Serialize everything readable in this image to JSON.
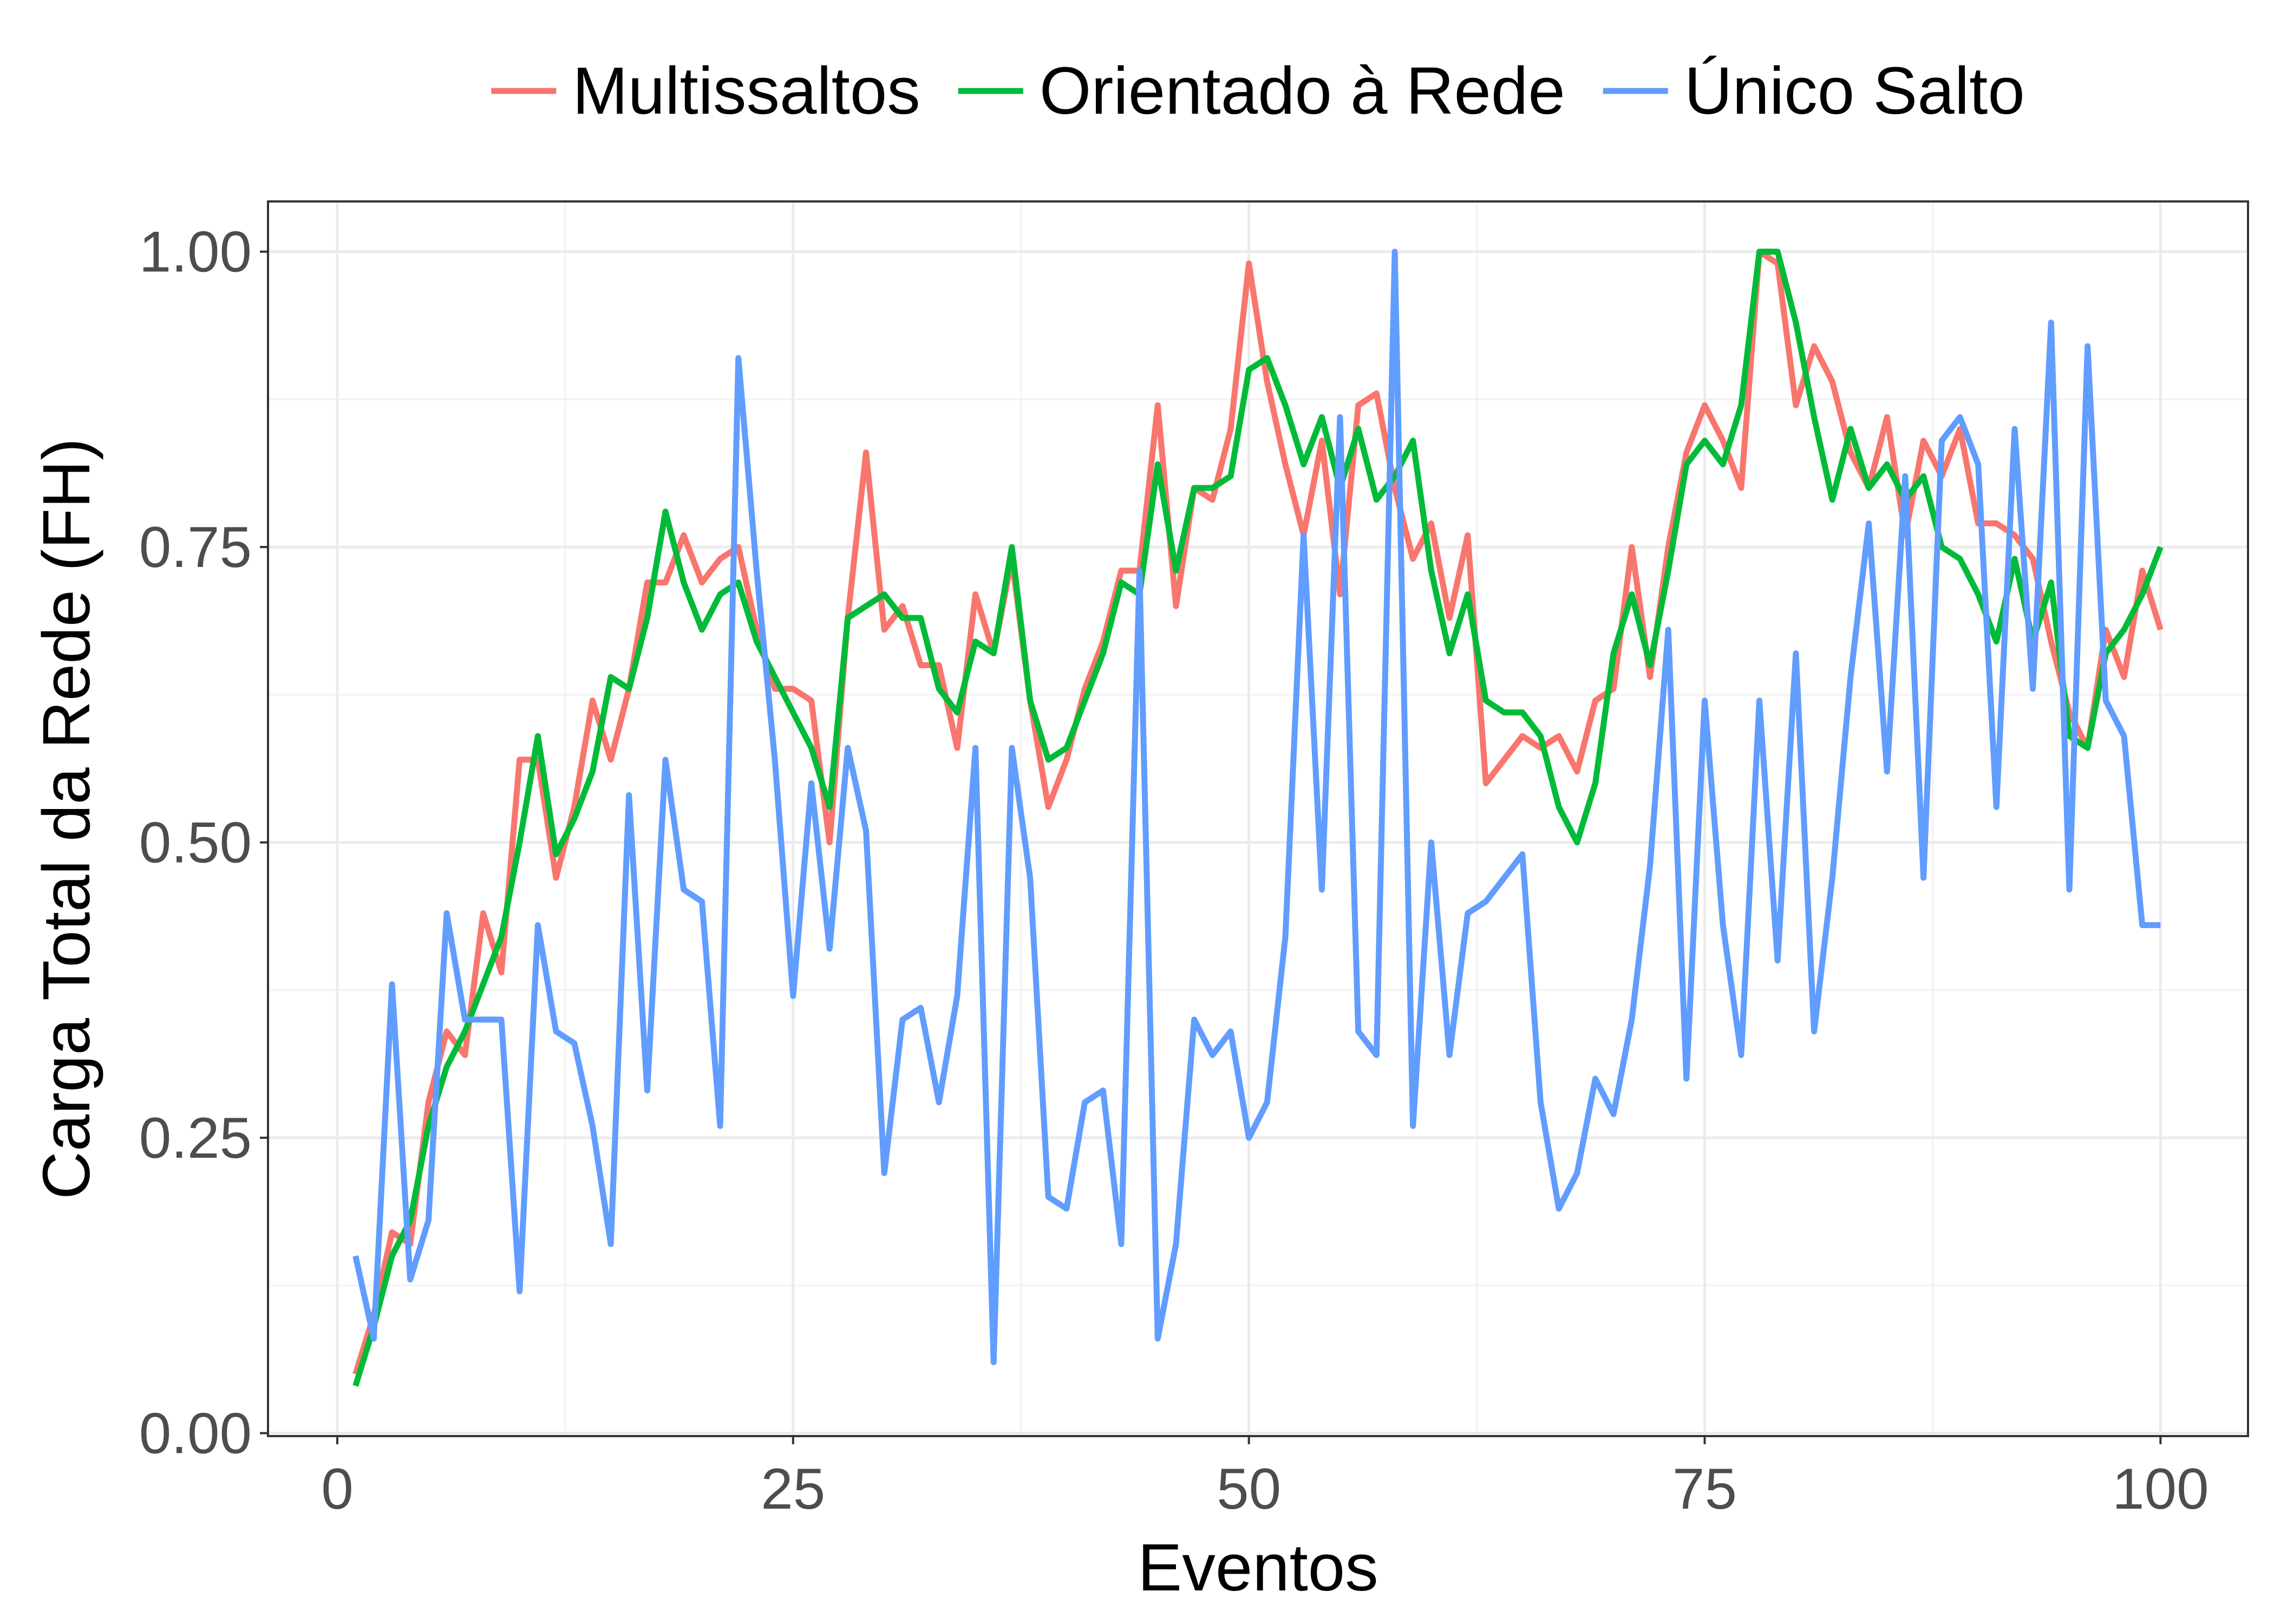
{
  "chart_data": {
    "type": "line",
    "title": "",
    "xlabel": "Eventos",
    "ylabel": "Carga Total da Rede (FH)",
    "xlim": [
      -3.8,
      104.8
    ],
    "ylim": [
      -0.0025,
      1.0425
    ],
    "x_ticks": [
      0,
      25,
      50,
      75,
      100
    ],
    "x_tick_labels": [
      "0",
      "25",
      "50",
      "75",
      "100"
    ],
    "y_ticks": [
      0,
      0.25,
      0.5,
      0.75,
      1
    ],
    "y_tick_labels": [
      "0.00",
      "0.25",
      "0.50",
      "0.75",
      "1.00"
    ],
    "x_minor_ticks": [
      12.5,
      37.5,
      62.5,
      87.5
    ],
    "y_minor_ticks": [
      0.125,
      0.375,
      0.625,
      0.875
    ],
    "grid": true,
    "legend_position": "top",
    "x": [
      1,
      2,
      3,
      4,
      5,
      6,
      7,
      8,
      9,
      10,
      11,
      12,
      13,
      14,
      15,
      16,
      17,
      18,
      19,
      20,
      21,
      22,
      23,
      24,
      25,
      26,
      27,
      28,
      29,
      30,
      31,
      32,
      33,
      34,
      35,
      36,
      37,
      38,
      39,
      40,
      41,
      42,
      43,
      44,
      45,
      46,
      47,
      48,
      49,
      50,
      51,
      52,
      53,
      54,
      55,
      56,
      57,
      58,
      59,
      60,
      61,
      62,
      63,
      64,
      65,
      66,
      67,
      68,
      69,
      70,
      71,
      72,
      73,
      74,
      75,
      76,
      77,
      78,
      79,
      80,
      81,
      82,
      83,
      84,
      85,
      86,
      87,
      88,
      89,
      90,
      91,
      92,
      93,
      94,
      95,
      96,
      97,
      98,
      99,
      100
    ],
    "series": [
      {
        "name": "Multissaltos",
        "color": "#F8766D",
        "values": [
          0.05,
          0.1,
          0.17,
          0.16,
          0.28,
          0.34,
          0.32,
          0.44,
          0.39,
          0.57,
          0.57,
          0.47,
          0.53,
          0.62,
          0.57,
          0.63,
          0.72,
          0.72,
          0.76,
          0.72,
          0.74,
          0.75,
          0.68,
          0.63,
          0.63,
          0.62,
          0.5,
          0.69,
          0.83,
          0.68,
          0.7,
          0.65,
          0.65,
          0.58,
          0.71,
          0.66,
          0.74,
          0.62,
          0.53,
          0.57,
          0.63,
          0.67,
          0.73,
          0.73,
          0.87,
          0.7,
          0.8,
          0.79,
          0.85,
          0.99,
          0.89,
          0.82,
          0.76,
          0.84,
          0.71,
          0.87,
          0.88,
          0.8,
          0.74,
          0.77,
          0.69,
          0.76,
          0.55,
          0.57,
          0.59,
          0.58,
          0.59,
          0.56,
          0.62,
          0.63,
          0.75,
          0.64,
          0.75,
          0.83,
          0.87,
          0.84,
          0.8,
          1.0,
          0.99,
          0.87,
          0.92,
          0.89,
          0.83,
          0.8,
          0.86,
          0.76,
          0.84,
          0.81,
          0.85,
          0.77,
          0.77,
          0.76,
          0.74,
          0.67,
          0.61,
          0.58,
          0.68,
          0.64,
          0.73,
          0.68
        ]
      },
      {
        "name": "Orientado à Rede",
        "color": "#00BA38",
        "values": [
          0.04,
          0.09,
          0.15,
          0.18,
          0.26,
          0.31,
          0.34,
          0.38,
          0.42,
          0.5,
          0.59,
          0.49,
          0.52,
          0.56,
          0.64,
          0.63,
          0.69,
          0.78,
          0.72,
          0.68,
          0.71,
          0.72,
          0.67,
          0.64,
          0.61,
          0.58,
          0.53,
          0.69,
          0.7,
          0.71,
          0.69,
          0.69,
          0.63,
          0.61,
          0.67,
          0.66,
          0.75,
          0.62,
          0.57,
          0.58,
          0.62,
          0.66,
          0.72,
          0.71,
          0.82,
          0.73,
          0.8,
          0.8,
          0.81,
          0.9,
          0.91,
          0.87,
          0.82,
          0.86,
          0.8,
          0.85,
          0.79,
          0.81,
          0.84,
          0.73,
          0.66,
          0.71,
          0.62,
          0.61,
          0.61,
          0.59,
          0.53,
          0.5,
          0.55,
          0.66,
          0.71,
          0.65,
          0.73,
          0.82,
          0.84,
          0.82,
          0.87,
          1.0,
          1.0,
          0.94,
          0.86,
          0.79,
          0.85,
          0.8,
          0.82,
          0.79,
          0.81,
          0.75,
          0.74,
          0.71,
          0.67,
          0.74,
          0.67,
          0.72,
          0.59,
          0.58,
          0.66,
          0.68,
          0.71,
          0.75
        ]
      },
      {
        "name": "Único Salto",
        "color": "#619CFF",
        "values": [
          0.15,
          0.08,
          0.38,
          0.13,
          0.18,
          0.44,
          0.35,
          0.35,
          0.35,
          0.12,
          0.43,
          0.34,
          0.33,
          0.26,
          0.16,
          0.54,
          0.29,
          0.57,
          0.46,
          0.45,
          0.26,
          0.91,
          0.73,
          0.57,
          0.37,
          0.55,
          0.41,
          0.58,
          0.51,
          0.22,
          0.35,
          0.36,
          0.28,
          0.37,
          0.58,
          0.06,
          0.58,
          0.47,
          0.2,
          0.19,
          0.28,
          0.29,
          0.16,
          0.73,
          0.08,
          0.16,
          0.35,
          0.32,
          0.34,
          0.25,
          0.28,
          0.42,
          0.76,
          0.46,
          0.86,
          0.34,
          0.32,
          1.0,
          0.26,
          0.5,
          0.32,
          0.44,
          0.45,
          0.47,
          0.49,
          0.28,
          0.19,
          0.22,
          0.3,
          0.27,
          0.35,
          0.48,
          0.68,
          0.3,
          0.62,
          0.43,
          0.32,
          0.62,
          0.4,
          0.66,
          0.34,
          0.47,
          0.64,
          0.77,
          0.56,
          0.81,
          0.47,
          0.84,
          0.86,
          0.82,
          0.53,
          0.85,
          0.63,
          0.94,
          0.46,
          0.92,
          0.62,
          0.59,
          0.43,
          0.43
        ]
      }
    ]
  }
}
